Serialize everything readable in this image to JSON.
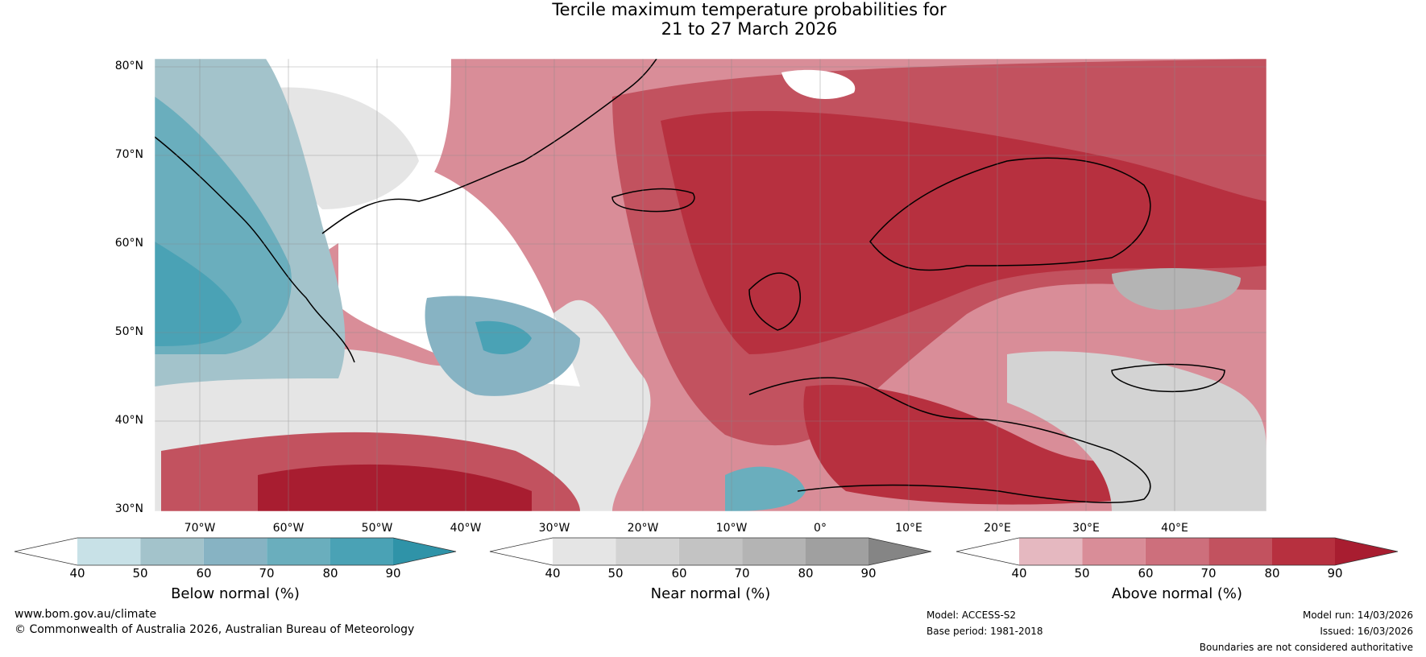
{
  "title": {
    "line1": "Tercile maximum temperature probabilities for",
    "line2": "21 to 27 March 2026"
  },
  "map": {
    "lat_labels": [
      "80°N",
      "70°N",
      "60°N",
      "50°N",
      "40°N",
      "30°N"
    ],
    "lon_labels": [
      "70°W",
      "60°W",
      "50°W",
      "40°W",
      "30°W",
      "20°W",
      "10°W",
      "0°",
      "10°E",
      "20°E",
      "30°E",
      "40°E"
    ]
  },
  "colorbars": [
    {
      "label": "Below normal (%)",
      "ticks": [
        "40",
        "50",
        "60",
        "70",
        "80",
        "90"
      ],
      "colors": [
        "#ffffff",
        "#c8e1e7",
        "#a3c3cb",
        "#87b3c3",
        "#6aaebd",
        "#4aa2b5",
        "#2f93a8"
      ]
    },
    {
      "label": "Near normal (%)",
      "ticks": [
        "40",
        "50",
        "60",
        "70",
        "80",
        "90"
      ],
      "colors": [
        "#ffffff",
        "#e5e5e5",
        "#d3d3d3",
        "#c3c3c3",
        "#b4b4b4",
        "#a0a0a0",
        "#858585"
      ]
    },
    {
      "label": "Above normal (%)",
      "ticks": [
        "40",
        "50",
        "60",
        "70",
        "80",
        "90"
      ],
      "colors": [
        "#ffffff",
        "#e5b8c0",
        "#d98d98",
        "#cd6f7c",
        "#c2525f",
        "#b7303f",
        "#a81d30"
      ]
    }
  ],
  "footer": {
    "website": "www.bom.gov.au/climate",
    "copyright": "© Commonwealth of Australia 2026, Australian Bureau of Meteorology",
    "model": "Model: ACCESS-S2",
    "base_period": "Base period: 1981-2018",
    "model_run": "Model run: 14/03/2026",
    "issued": "Issued: 16/03/2026",
    "disclaimer": "Boundaries are not considered authoritative"
  }
}
